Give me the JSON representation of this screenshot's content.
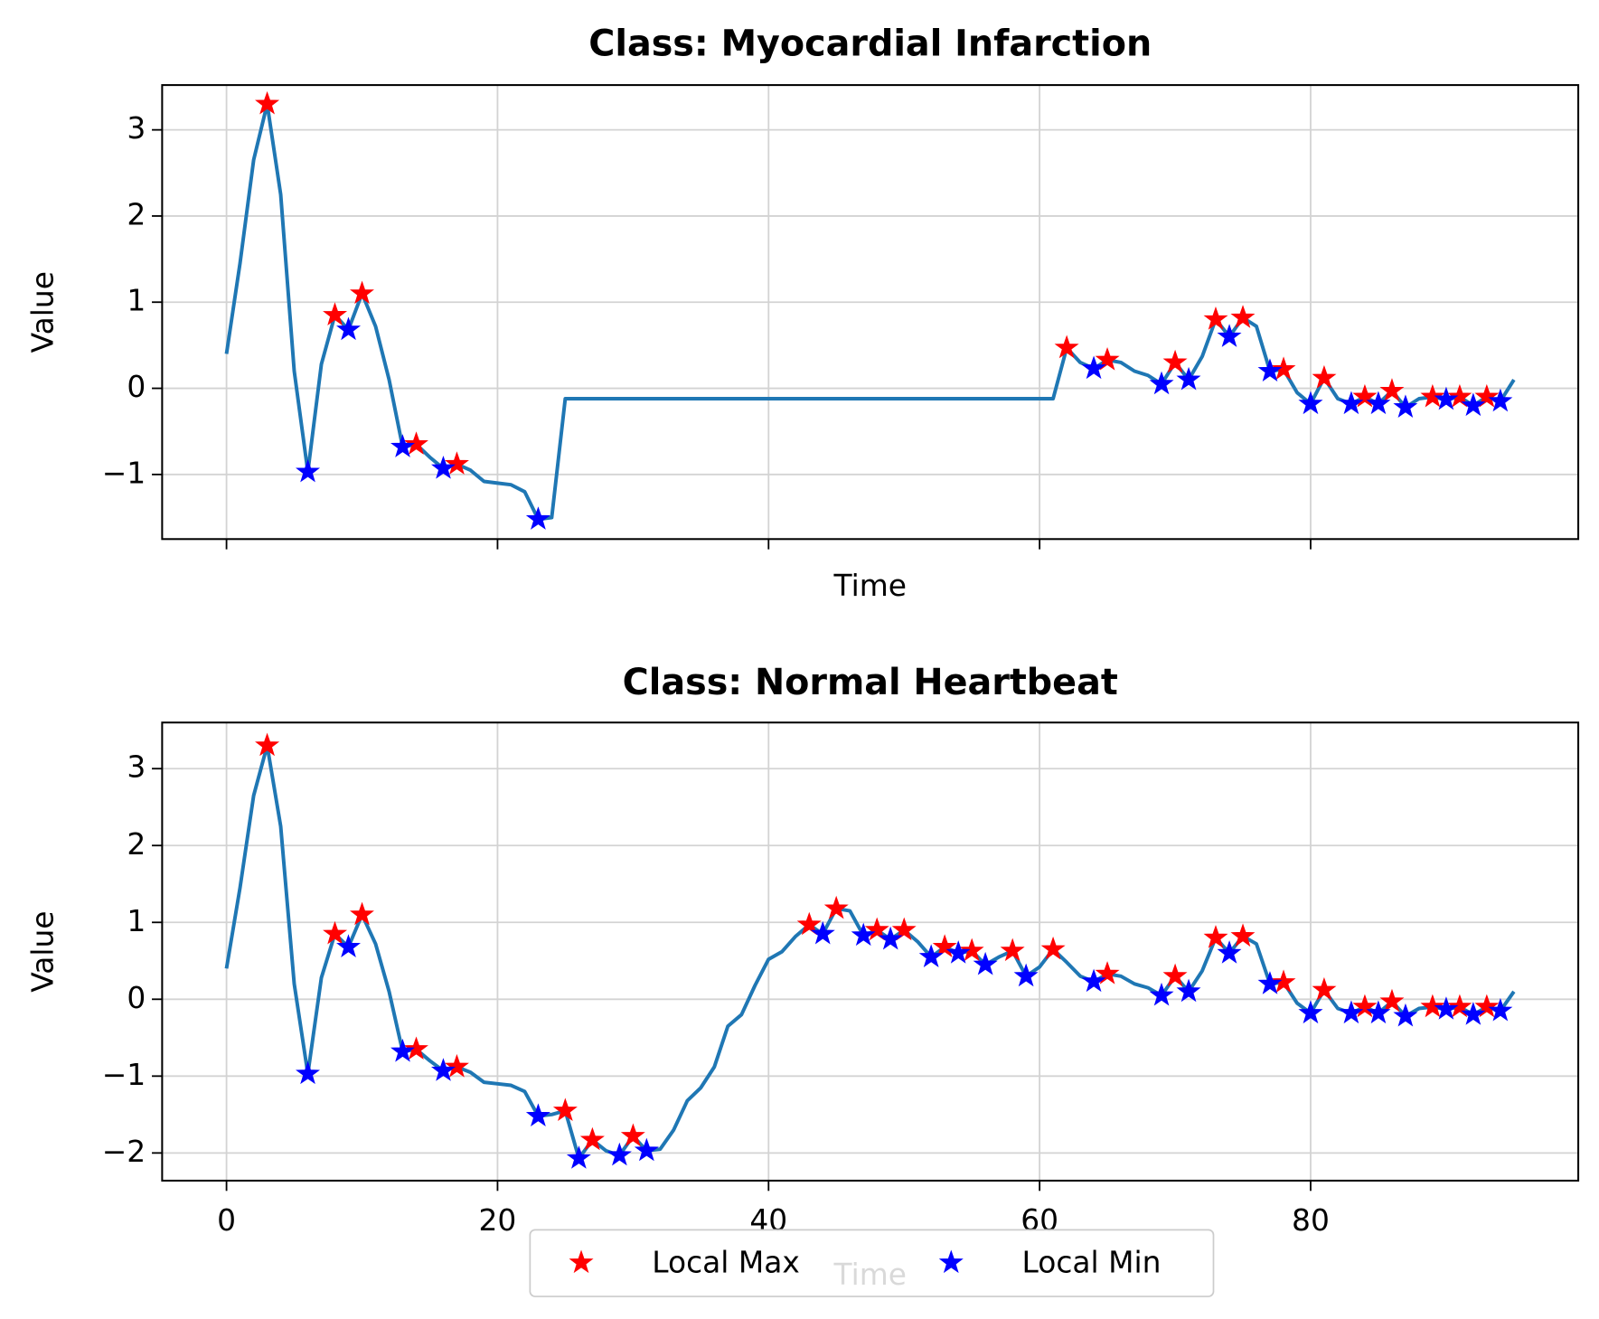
{
  "chart_data": [
    {
      "type": "line",
      "title": "Class: Myocardial Infarction",
      "xlabel": "Time",
      "ylabel": "Value",
      "xlim": [
        -4.75,
        99.75
      ],
      "ylim": [
        -1.75,
        3.52
      ],
      "xticks": [
        0,
        20,
        40,
        60,
        80
      ],
      "show_xtick_labels": false,
      "yticks": [
        {
          "value": -1,
          "label": "−1"
        },
        0,
        1,
        2,
        3
      ],
      "grid": true,
      "line_color": "#1f77b4",
      "values": [
        0.4,
        1.45,
        2.65,
        3.3,
        2.25,
        0.2,
        -0.97,
        0.28,
        0.85,
        0.68,
        1.1,
        0.72,
        0.1,
        -0.68,
        -0.65,
        -0.8,
        -0.93,
        -0.88,
        -0.95,
        -1.08,
        -1.1,
        -1.12,
        -1.2,
        -1.52,
        -1.5,
        -0.12,
        -0.12,
        -0.12,
        -0.12,
        -0.12,
        -0.12,
        -0.12,
        -0.12,
        -0.12,
        -0.12,
        -0.12,
        -0.12,
        -0.12,
        -0.12,
        -0.12,
        -0.12,
        -0.12,
        -0.12,
        -0.12,
        -0.12,
        -0.12,
        -0.12,
        -0.12,
        -0.12,
        -0.12,
        -0.12,
        -0.12,
        -0.12,
        -0.12,
        -0.12,
        -0.12,
        -0.12,
        -0.12,
        -0.12,
        -0.12,
        -0.12,
        -0.12,
        0.47,
        0.3,
        0.23,
        0.33,
        0.3,
        0.2,
        0.15,
        0.05,
        0.3,
        0.1,
        0.37,
        0.8,
        0.6,
        0.82,
        0.72,
        0.2,
        0.22,
        -0.05,
        -0.18,
        0.12,
        -0.12,
        -0.18,
        -0.1,
        -0.18,
        -0.03,
        -0.22,
        -0.12,
        -0.1,
        -0.13,
        -0.1,
        -0.2,
        -0.1,
        -0.15,
        0.1
      ],
      "series": [
        {
          "name": "Local Max",
          "color": "#ff0000",
          "x": [
            3,
            8,
            10,
            14,
            17,
            62,
            65,
            70,
            73,
            75,
            78,
            81,
            84,
            86,
            89,
            91,
            93
          ]
        },
        {
          "name": "Local Min",
          "color": "#0000ff",
          "x": [
            6,
            9,
            13,
            16,
            23,
            64,
            69,
            71,
            74,
            77,
            80,
            83,
            85,
            87,
            90,
            92,
            94
          ]
        }
      ]
    },
    {
      "type": "line",
      "title": "Class: Normal Heartbeat",
      "xlabel": "Time",
      "ylabel": "Value",
      "xlim": [
        -4.75,
        99.75
      ],
      "ylim": [
        -2.36,
        3.6
      ],
      "xticks": [
        0,
        20,
        40,
        60,
        80
      ],
      "show_xtick_labels": true,
      "yticks": [
        {
          "value": -2,
          "label": "−2"
        },
        {
          "value": -1,
          "label": "−1"
        },
        0,
        1,
        2,
        3
      ],
      "grid": true,
      "line_color": "#1f77b4",
      "values": [
        0.4,
        1.45,
        2.65,
        3.3,
        2.25,
        0.2,
        -0.97,
        0.28,
        0.85,
        0.68,
        1.1,
        0.72,
        0.1,
        -0.68,
        -0.65,
        -0.8,
        -0.93,
        -0.88,
        -0.95,
        -1.08,
        -1.1,
        -1.12,
        -1.2,
        -1.52,
        -1.5,
        -1.45,
        -2.07,
        -1.83,
        -1.97,
        -2.03,
        -1.78,
        -1.97,
        -1.95,
        -1.7,
        -1.32,
        -1.15,
        -0.88,
        -0.35,
        -0.2,
        0.18,
        0.52,
        0.62,
        0.82,
        0.97,
        0.85,
        1.18,
        1.15,
        0.83,
        0.9,
        0.78,
        0.9,
        0.75,
        0.55,
        0.68,
        0.6,
        0.63,
        0.45,
        0.55,
        0.63,
        0.3,
        0.42,
        0.65,
        0.48,
        0.3,
        0.23,
        0.33,
        0.3,
        0.2,
        0.15,
        0.05,
        0.3,
        0.1,
        0.37,
        0.8,
        0.6,
        0.82,
        0.72,
        0.2,
        0.22,
        -0.05,
        -0.18,
        0.12,
        -0.12,
        -0.18,
        -0.1,
        -0.18,
        -0.03,
        -0.22,
        -0.12,
        -0.1,
        -0.13,
        -0.1,
        -0.2,
        -0.1,
        -0.15,
        0.1
      ],
      "series": [
        {
          "name": "Local Max",
          "color": "#ff0000",
          "x": [
            3,
            8,
            10,
            14,
            17,
            25,
            27,
            30,
            43,
            45,
            48,
            50,
            53,
            55,
            58,
            61,
            65,
            70,
            73,
            75,
            78,
            81,
            84,
            86,
            89,
            91,
            93
          ]
        },
        {
          "name": "Local Min",
          "color": "#0000ff",
          "x": [
            6,
            9,
            13,
            16,
            23,
            26,
            29,
            31,
            44,
            47,
            49,
            52,
            54,
            56,
            59,
            64,
            69,
            71,
            74,
            77,
            80,
            83,
            85,
            87,
            90,
            92,
            94
          ]
        }
      ]
    }
  ]
}
